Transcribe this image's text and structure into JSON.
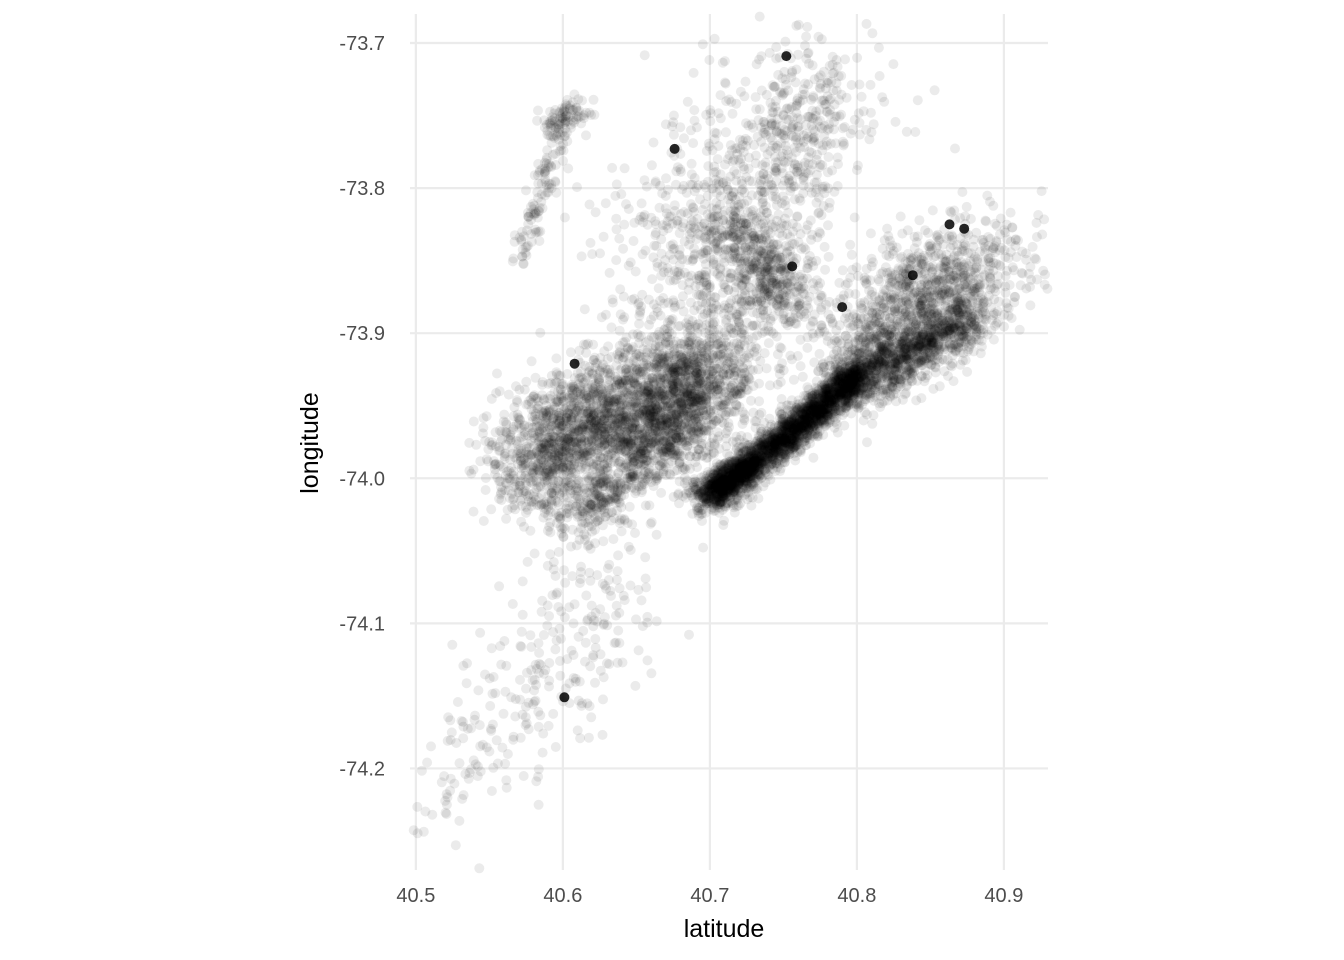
{
  "chart_data": {
    "type": "scatter",
    "title": "",
    "xlabel": "latitude",
    "ylabel": "longitude",
    "xlim": [
      40.496,
      40.93
    ],
    "ylim": [
      -74.27,
      -73.68
    ],
    "x_ticks": [
      40.5,
      40.6,
      40.7,
      40.8,
      40.9
    ],
    "x_tick_labels": [
      "40.5",
      "40.6",
      "40.7",
      "40.8",
      "40.9"
    ],
    "y_ticks": [
      -73.7,
      -73.8,
      -73.9,
      -74.0,
      -74.1,
      -74.2
    ],
    "y_tick_labels": [
      "-73.7",
      "-73.8",
      "-73.9",
      "-74.0",
      "-74.1",
      "-74.2"
    ],
    "grid": true,
    "point_color": "#000000",
    "point_alpha": 0.08,
    "legend": "none",
    "clusters": [
      {
        "lat": [
          40.7,
          40.8
        ],
        "lon": [
          -74.015,
          -73.93
        ],
        "n": 2600,
        "spread": 0.006
      },
      {
        "lat": [
          40.79,
          40.88
        ],
        "lon": [
          -73.935,
          -73.89
        ],
        "n": 900,
        "spread": 0.009
      },
      {
        "lat": [
          40.8,
          40.86
        ],
        "lon": [
          -73.93,
          -73.85
        ],
        "n": 900,
        "spread": 0.018
      },
      {
        "lat": [
          40.84,
          40.91
        ],
        "lon": [
          -73.9,
          -73.84
        ],
        "n": 400,
        "spread": 0.018
      },
      {
        "lat": [
          40.58,
          40.7
        ],
        "lon": [
          -73.97,
          -73.93
        ],
        "n": 1400,
        "spread": 0.02
      },
      {
        "lat": [
          40.64,
          40.7
        ],
        "lon": [
          -73.99,
          -73.93
        ],
        "n": 900,
        "spread": 0.018
      },
      {
        "lat": [
          40.57,
          40.62
        ],
        "lon": [
          -74.01,
          -73.96
        ],
        "n": 500,
        "spread": 0.015
      },
      {
        "lat": [
          40.6,
          40.64
        ],
        "lon": [
          -74.035,
          -74.0
        ],
        "n": 250,
        "spread": 0.01
      },
      {
        "lat": [
          40.66,
          40.74
        ],
        "lon": [
          -73.96,
          -73.85
        ],
        "n": 700,
        "spread": 0.03
      },
      {
        "lat": [
          40.7,
          40.76
        ],
        "lon": [
          -73.82,
          -73.88
        ],
        "n": 450,
        "spread": 0.012
      },
      {
        "lat": [
          40.66,
          40.78
        ],
        "lon": [
          -73.85,
          -73.74
        ],
        "n": 500,
        "spread": 0.035
      },
      {
        "lat": [
          40.74,
          40.78
        ],
        "lon": [
          -73.8,
          -73.72
        ],
        "n": 250,
        "spread": 0.02
      },
      {
        "lat": [
          40.57,
          40.6
        ],
        "lon": [
          -73.85,
          -73.75
        ],
        "n": 120,
        "spread": 0.004
      },
      {
        "lat": [
          40.59,
          40.61
        ],
        "lon": [
          -73.76,
          -73.745
        ],
        "n": 80,
        "spread": 0.006
      },
      {
        "lat": [
          40.56,
          40.64
        ],
        "lon": [
          -74.18,
          -74.07
        ],
        "n": 220,
        "spread": 0.025
      },
      {
        "lat": [
          40.5,
          40.56
        ],
        "lon": [
          -74.25,
          -74.15
        ],
        "n": 70,
        "spread": 0.015
      },
      {
        "lat": [
          40.69,
          40.72
        ],
        "lon": [
          -74.015,
          -73.99
        ],
        "n": 250,
        "spread": 0.005
      }
    ],
    "notable_points": [
      {
        "lat": 40.752,
        "lon": -73.709
      },
      {
        "lat": 40.676,
        "lon": -73.773
      },
      {
        "lat": 40.863,
        "lon": -73.825
      },
      {
        "lat": 40.873,
        "lon": -73.828
      },
      {
        "lat": 40.756,
        "lon": -73.854
      },
      {
        "lat": 40.79,
        "lon": -73.882
      },
      {
        "lat": 40.601,
        "lon": -74.151
      },
      {
        "lat": 40.608,
        "lon": -73.921
      },
      {
        "lat": 40.838,
        "lon": -73.86
      }
    ]
  }
}
